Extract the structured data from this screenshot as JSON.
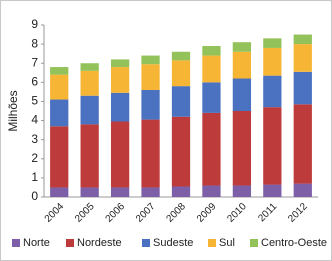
{
  "chart_data": {
    "type": "stacked_bar",
    "y_label": "Milhões",
    "categories": [
      "2004",
      "2005",
      "2006",
      "2007",
      "2008",
      "2009",
      "2010",
      "2011",
      "2012"
    ],
    "series": [
      {
        "name": "Norte",
        "color": "#7d5fa8",
        "values": [
          0.5,
          0.5,
          0.5,
          0.5,
          0.55,
          0.6,
          0.6,
          0.65,
          0.7
        ]
      },
      {
        "name": "Nordeste",
        "color": "#be3b3b",
        "values": [
          3.2,
          3.3,
          3.45,
          3.55,
          3.65,
          3.8,
          3.9,
          4.05,
          4.15
        ]
      },
      {
        "name": "Sudeste",
        "color": "#4a72c0",
        "values": [
          1.4,
          1.5,
          1.5,
          1.55,
          1.6,
          1.6,
          1.7,
          1.65,
          1.7
        ]
      },
      {
        "name": "Sul",
        "color": "#f7b536",
        "values": [
          1.3,
          1.3,
          1.35,
          1.35,
          1.35,
          1.4,
          1.4,
          1.45,
          1.45
        ]
      },
      {
        "name": "Centro-Oeste",
        "color": "#93c25a",
        "values": [
          0.4,
          0.4,
          0.4,
          0.45,
          0.45,
          0.5,
          0.5,
          0.5,
          0.5
        ]
      }
    ],
    "ylim": [
      0,
      9
    ],
    "yticks": [
      0,
      1,
      2,
      3,
      4,
      5,
      6,
      7,
      8,
      9
    ],
    "grid": false
  }
}
